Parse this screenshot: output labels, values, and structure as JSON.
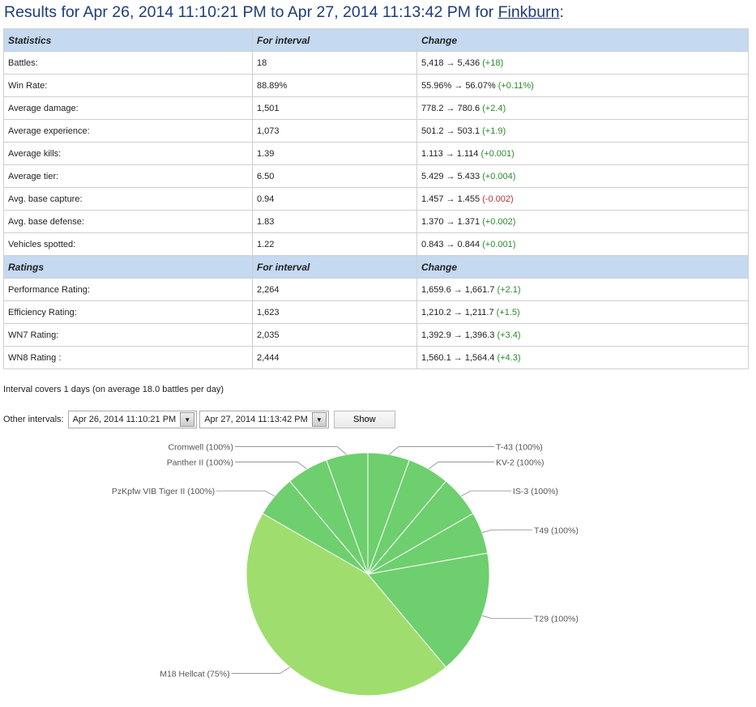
{
  "title": {
    "prefix": "Results for Apr 26, 2014 11:10:21 PM to Apr 27, 2014 11:13:42 PM for ",
    "player": "Finkburn",
    "suffix": ":"
  },
  "statistics_header": [
    "Statistics",
    "For interval",
    "Change"
  ],
  "statistics": [
    {
      "label": "Battles:",
      "interval": "18",
      "from": "5,418",
      "to": "5,436",
      "delta": "(+18)",
      "sign": "pos"
    },
    {
      "label": "Win Rate:",
      "interval": "88.89%",
      "from": "55.96%",
      "to": "56.07%",
      "delta": "(+0.11%)",
      "sign": "pos"
    },
    {
      "label": "Average damage:",
      "interval": "1,501",
      "from": "778.2",
      "to": "780.6",
      "delta": "(+2.4)",
      "sign": "pos"
    },
    {
      "label": "Average experience:",
      "interval": "1,073",
      "from": "501.2",
      "to": "503.1",
      "delta": "(+1.9)",
      "sign": "pos"
    },
    {
      "label": "Average kills:",
      "interval": "1.39",
      "from": "1.113",
      "to": "1.114",
      "delta": "(+0.001)",
      "sign": "pos"
    },
    {
      "label": "Average tier:",
      "interval": "6.50",
      "from": "5.429",
      "to": "5.433",
      "delta": "(+0.004)",
      "sign": "pos"
    },
    {
      "label": "Avg. base capture:",
      "interval": "0.94",
      "from": "1.457",
      "to": "1.455",
      "delta": "(-0.002)",
      "sign": "neg"
    },
    {
      "label": "Avg. base defense:",
      "interval": "1.83",
      "from": "1.370",
      "to": "1.371",
      "delta": "(+0.002)",
      "sign": "pos"
    },
    {
      "label": "Vehicles spotted:",
      "interval": "1.22",
      "from": "0.843",
      "to": "0.844",
      "delta": "(+0.001)",
      "sign": "pos"
    }
  ],
  "ratings_header": [
    "Ratings",
    "For interval",
    "Change"
  ],
  "ratings": [
    {
      "label": "Performance Rating:",
      "interval": "2,264",
      "from": "1,659.6",
      "to": "1,661.7",
      "delta": "(+2.1)",
      "sign": "pos"
    },
    {
      "label": "Efficiency Rating:",
      "interval": "1,623",
      "from": "1,210.2",
      "to": "1,211.7",
      "delta": "(+1.5)",
      "sign": "pos"
    },
    {
      "label": "WN7 Rating:",
      "interval": "2,035",
      "from": "1,392.9",
      "to": "1,396.3",
      "delta": "(+3.4)",
      "sign": "pos"
    },
    {
      "label": "WN8 Rating :",
      "interval": "2,444",
      "from": "1,560.1",
      "to": "1,564.4",
      "delta": "(+4.3)",
      "sign": "pos"
    }
  ],
  "arrow_glyph": "→",
  "interval_note": "Interval covers 1 days (on average 18.0 battles per day)",
  "other_intervals": {
    "label": "Other intervals:",
    "from_value": "Apr 26, 2014 11:10:21 PM",
    "to_value": "Apr 27, 2014 11:13:42 PM",
    "show_label": "Show",
    "dropdown_icon": "chevron-down-icon"
  },
  "colors": {
    "positive": "#2a8c2a",
    "negative": "#c03030",
    "header_bg": "#c5d9f1",
    "pie_main": "#9fde6e",
    "pie_other": "#6ecf6e"
  },
  "chart_data": {
    "type": "pie",
    "slices": [
      {
        "label": "T-43 (100%)",
        "battles": 1
      },
      {
        "label": "KV-2 (100%)",
        "battles": 1
      },
      {
        "label": "IS-3 (100%)",
        "battles": 1
      },
      {
        "label": "T49 (100%)",
        "battles": 1
      },
      {
        "label": "T29 (100%)",
        "battles": 3
      },
      {
        "label": "M18 Hellcat (75%)",
        "battles": 8
      },
      {
        "label": "PzKpfw VIB Tiger II (100%)",
        "battles": 1
      },
      {
        "label": "Panther II (100%)",
        "battles": 1
      },
      {
        "label": "Cromwell (100%)",
        "battles": 1
      }
    ]
  }
}
